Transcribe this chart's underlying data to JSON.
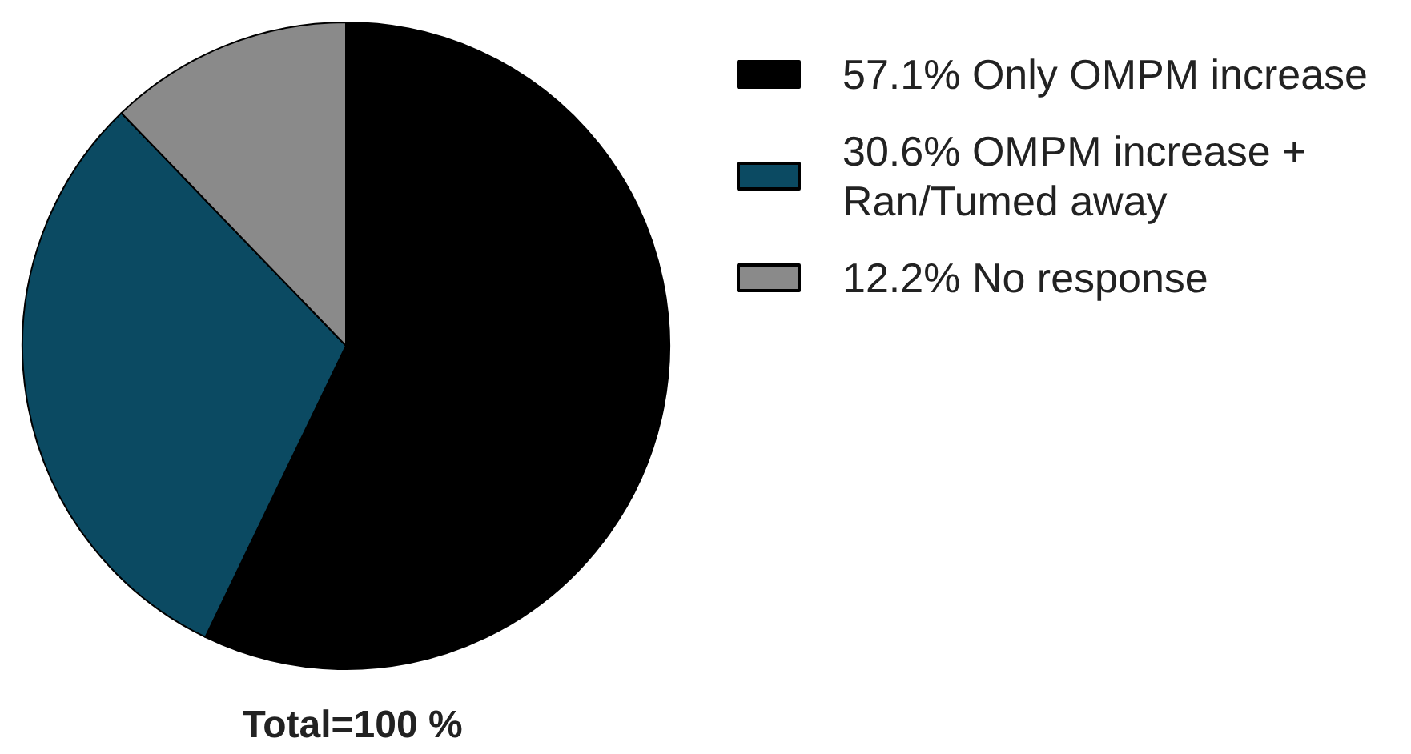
{
  "chart_data": {
    "type": "pie",
    "categories": [
      "57.1% Only OMPM increase",
      "30.6% OMPM increase + Ran/Tumed away",
      "12.2% No response"
    ],
    "values": [
      57.1,
      30.6,
      12.2
    ],
    "colors": [
      "#000000",
      "#0b4a62",
      "#8a8a8a"
    ],
    "legend": "right",
    "annotations": [
      "Total=100 %"
    ]
  }
}
